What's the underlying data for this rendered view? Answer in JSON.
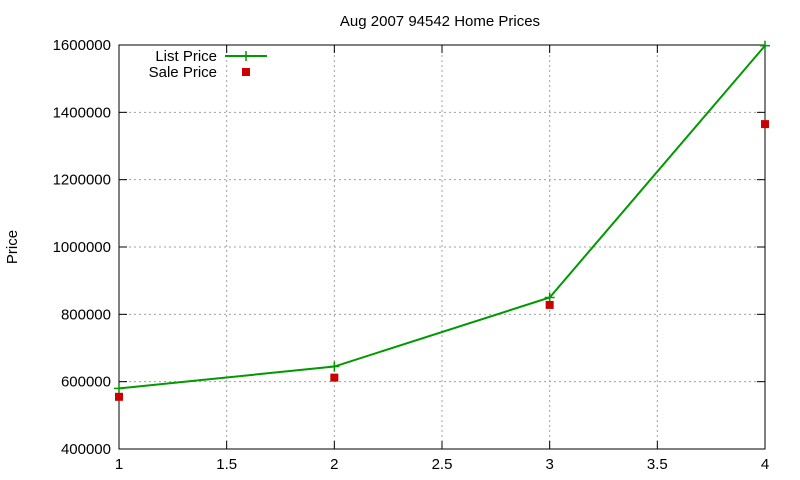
{
  "chart_data": {
    "type": "line",
    "title": "Aug 2007 94542 Home Prices",
    "xlabel": "",
    "ylabel": "Price",
    "xlim": [
      1,
      4
    ],
    "ylim": [
      400000,
      1600000
    ],
    "xticks": [
      1,
      1.5,
      2,
      2.5,
      3,
      3.5,
      4
    ],
    "xtick_labels": [
      "1",
      "1.5",
      "2",
      "2.5",
      "3",
      "3.5",
      "4"
    ],
    "yticks": [
      400000,
      600000,
      800000,
      1000000,
      1200000,
      1400000,
      1600000
    ],
    "ytick_labels": [
      "400000",
      "600000",
      "800000",
      "1000000",
      "1200000",
      "1400000",
      "1600000"
    ],
    "grid": true,
    "legend_position": "top-left",
    "x": [
      1,
      2,
      3,
      4
    ],
    "series": [
      {
        "name": "List Price",
        "style": "line+cross",
        "color": "#009900",
        "values": [
          580000,
          645000,
          850000,
          1598000
        ]
      },
      {
        "name": "Sale Price",
        "style": "square-points",
        "color": "#cc0000",
        "values": [
          555000,
          612000,
          828000,
          1365000
        ]
      }
    ]
  }
}
